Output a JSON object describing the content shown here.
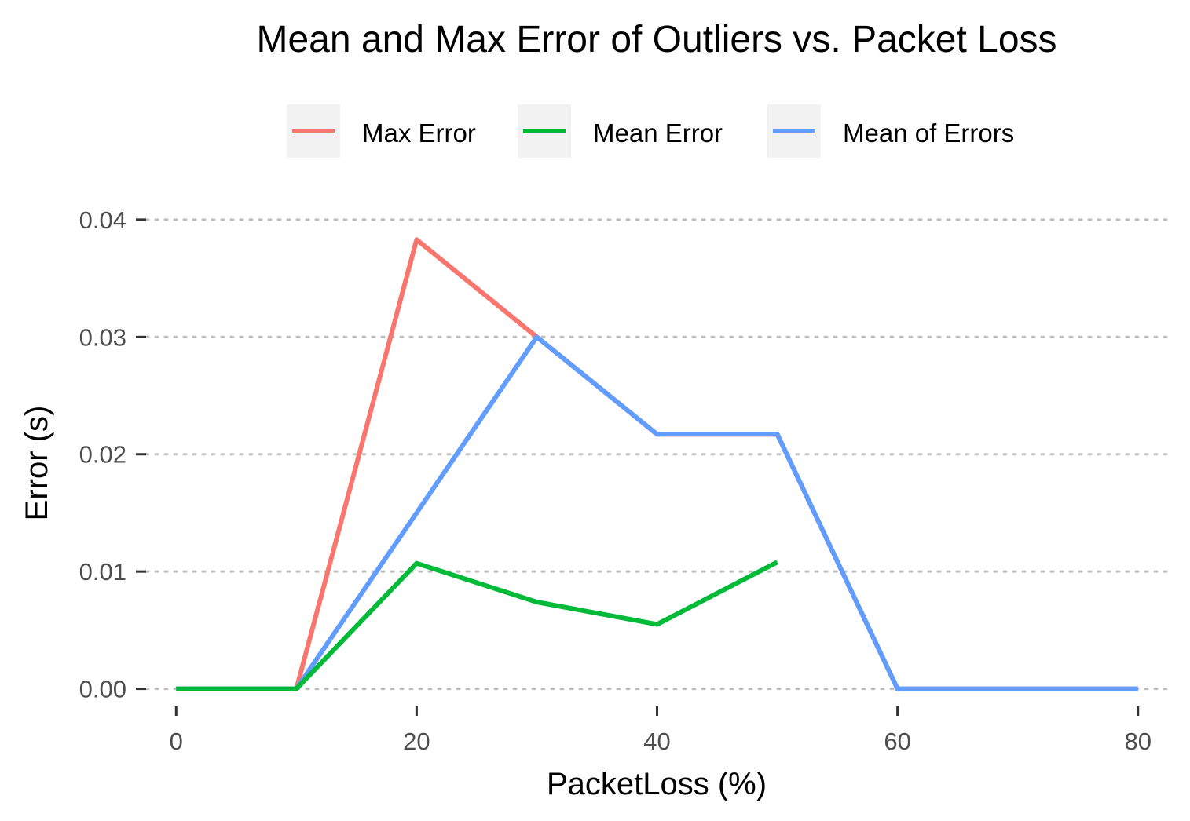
{
  "chart_data": {
    "type": "line",
    "title": "Mean and Max Error of Outliers vs. Packet Loss",
    "xlabel": "PacketLoss (%)",
    "ylabel": "Error (s)",
    "xlim": [
      -2.5,
      82.5
    ],
    "ylim": [
      -0.0015,
      0.042
    ],
    "x_ticks": [
      0,
      20,
      40,
      60,
      80
    ],
    "x_tick_labels": [
      "0",
      "20",
      "40",
      "60",
      "80"
    ],
    "y_ticks": [
      0.0,
      0.01,
      0.02,
      0.03,
      0.04
    ],
    "y_tick_labels": [
      "0.00",
      "0.01",
      "0.02",
      "0.03",
      "0.04"
    ],
    "grid": "horizontal-dotted",
    "legend_position": "top",
    "series": [
      {
        "name": "Max Error",
        "color": "#F8766D",
        "x": [
          0,
          10,
          20,
          30,
          40,
          50,
          60,
          70,
          80
        ],
        "y": [
          0,
          0,
          0.0383,
          0.03,
          0.0217,
          0.0217,
          0,
          0,
          0
        ]
      },
      {
        "name": "Mean Error",
        "color": "#00BA38",
        "x": [
          0,
          10,
          20,
          30,
          40,
          50
        ],
        "y": [
          0,
          0,
          0.0107,
          0.0074,
          0.0055,
          0.0108
        ]
      },
      {
        "name": "Mean of Errors",
        "color": "#619CFF",
        "x": [
          0,
          10,
          20,
          30,
          40,
          50,
          60,
          70,
          80
        ],
        "y": [
          0,
          0,
          0.015,
          0.03,
          0.0217,
          0.0217,
          0,
          0,
          0
        ]
      }
    ]
  }
}
